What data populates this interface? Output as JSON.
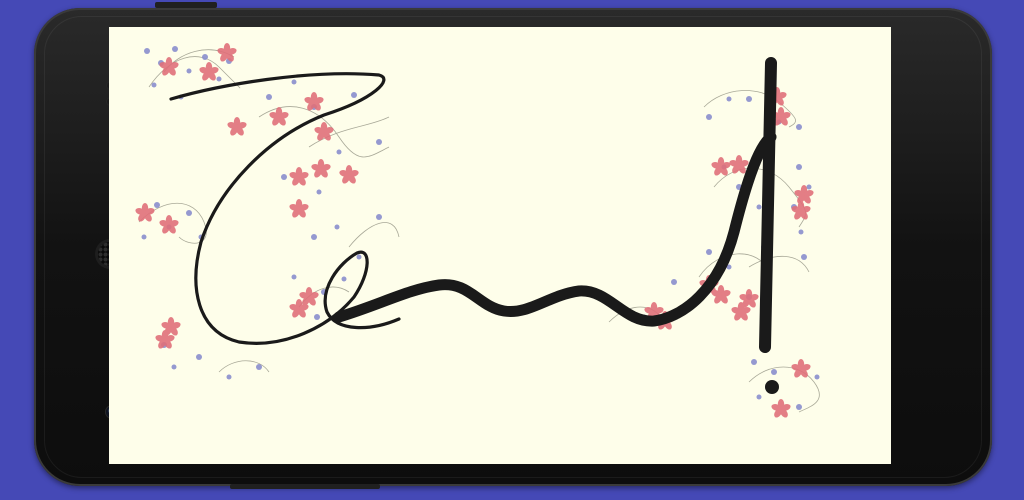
{
  "device": {
    "type": "android-phone-landscape",
    "background_color": "#4549b6",
    "body_color": "#141414"
  },
  "screen": {
    "background_color": "#fefeea",
    "content": "arabic-calligraphy-artwork",
    "ink_color": "#1a1a1a",
    "decoration": {
      "flower_color": "#e0707a",
      "dot_color": "#8a8fce",
      "vine_color": "#9a9a8a"
    }
  }
}
